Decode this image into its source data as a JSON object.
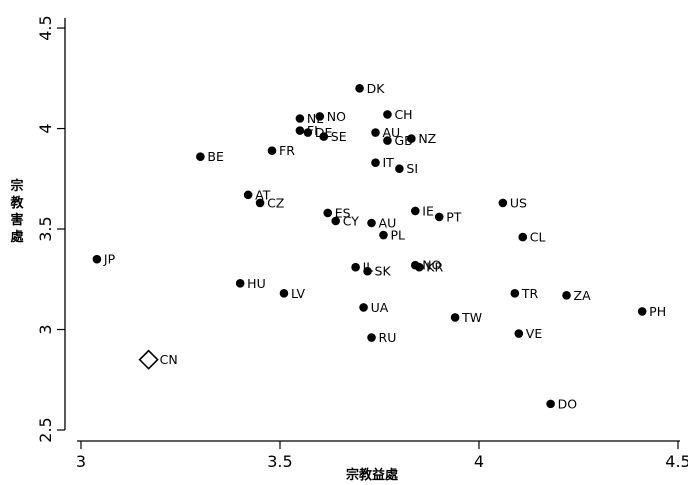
{
  "chart_data": {
    "type": "scatter",
    "title": "",
    "xlabel": "宗教益處",
    "ylabel": "宗教害處",
    "xlim": [
      2.99,
      4.5
    ],
    "ylim": [
      2.5,
      4.55
    ],
    "xticks": [
      "3",
      "3.5",
      "4",
      "4.5"
    ],
    "yticks": [
      "2.5",
      "3",
      "3.5",
      "4",
      "4.5"
    ],
    "grid": false,
    "legend": "none",
    "colors": {
      "marker": "#000000",
      "highlight_marker": "#ffffff"
    },
    "points": [
      {
        "label": "DK",
        "x": 3.7,
        "y": 4.2
      },
      {
        "label": "NO",
        "x": 3.6,
        "y": 4.06
      },
      {
        "label": "NL",
        "x": 3.55,
        "y": 4.05
      },
      {
        "label": "CH",
        "x": 3.77,
        "y": 4.07
      },
      {
        "label": "FI",
        "x": 3.55,
        "y": 3.99
      },
      {
        "label": "DE",
        "x": 3.57,
        "y": 3.98
      },
      {
        "label": "AU",
        "x": 3.74,
        "y": 3.98
      },
      {
        "label": "SE",
        "x": 3.61,
        "y": 3.96
      },
      {
        "label": "GB",
        "x": 3.77,
        "y": 3.94
      },
      {
        "label": "NZ",
        "x": 3.83,
        "y": 3.95
      },
      {
        "label": "FR",
        "x": 3.48,
        "y": 3.89
      },
      {
        "label": "BE",
        "x": 3.3,
        "y": 3.86
      },
      {
        "label": "IT",
        "x": 3.74,
        "y": 3.83
      },
      {
        "label": "SI",
        "x": 3.8,
        "y": 3.8
      },
      {
        "label": "AT",
        "x": 3.42,
        "y": 3.67
      },
      {
        "label": "CZ",
        "x": 3.45,
        "y": 3.63
      },
      {
        "label": "US",
        "x": 4.06,
        "y": 3.63
      },
      {
        "label": "ES",
        "x": 3.62,
        "y": 3.58
      },
      {
        "label": "IE",
        "x": 3.84,
        "y": 3.59
      },
      {
        "label": "PT",
        "x": 3.9,
        "y": 3.56
      },
      {
        "label": "CY",
        "x": 3.64,
        "y": 3.54
      },
      {
        "label": "AU",
        "x": 3.73,
        "y": 3.53
      },
      {
        "label": "PL",
        "x": 3.76,
        "y": 3.47
      },
      {
        "label": "CL",
        "x": 4.11,
        "y": 3.46
      },
      {
        "label": "JP",
        "x": 3.04,
        "y": 3.35
      },
      {
        "label": "IL",
        "x": 3.69,
        "y": 3.31
      },
      {
        "label": "SK",
        "x": 3.72,
        "y": 3.29
      },
      {
        "label": "NO",
        "x": 3.84,
        "y": 3.32
      },
      {
        "label": "KR",
        "x": 3.85,
        "y": 3.31
      },
      {
        "label": "HU",
        "x": 3.4,
        "y": 3.23
      },
      {
        "label": "LV",
        "x": 3.51,
        "y": 3.18
      },
      {
        "label": "TR",
        "x": 4.09,
        "y": 3.18
      },
      {
        "label": "ZA",
        "x": 4.22,
        "y": 3.17
      },
      {
        "label": "UA",
        "x": 3.71,
        "y": 3.11
      },
      {
        "label": "PH",
        "x": 4.41,
        "y": 3.09
      },
      {
        "label": "TW",
        "x": 3.94,
        "y": 3.06
      },
      {
        "label": "VE",
        "x": 4.1,
        "y": 2.98
      },
      {
        "label": "RU",
        "x": 3.73,
        "y": 2.96
      },
      {
        "label": "CN",
        "x": 3.17,
        "y": 2.85,
        "marker": "hollow-diamond"
      },
      {
        "label": "DO",
        "x": 4.18,
        "y": 2.63
      }
    ]
  }
}
